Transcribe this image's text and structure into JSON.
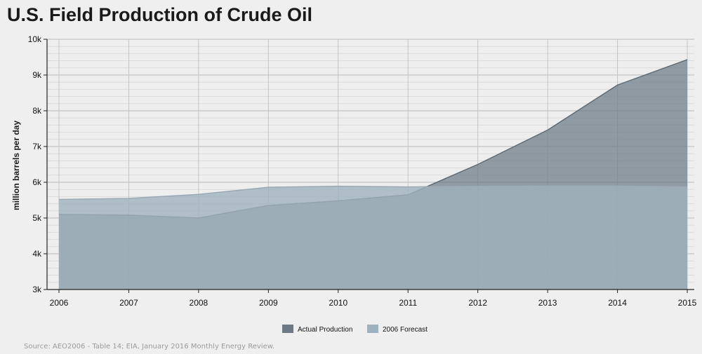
{
  "title": "U.S. Field Production of Crude Oil",
  "source": "Source: AEO2006 - Table 14; EIA, January 2016 Monthly Energy Review.",
  "colors": {
    "actual_fill": "#6b7a86",
    "actual_line": "#5f6b74",
    "forecast_fill": "#9fb1bd",
    "forecast_line": "#9aaab6",
    "background": "#efefef"
  },
  "chart_data": {
    "type": "area",
    "title": "U.S. Field Production of Crude Oil",
    "xlabel": "",
    "ylabel": "million barrels per day",
    "x": [
      "2006",
      "2007",
      "2008",
      "2009",
      "2010",
      "2011",
      "2012",
      "2013",
      "2014",
      "2015"
    ],
    "ylim": [
      3000,
      10000
    ],
    "yticks": [
      {
        "value": 3000,
        "label": "3k"
      },
      {
        "value": 4000,
        "label": "4k"
      },
      {
        "value": 5000,
        "label": "5k"
      },
      {
        "value": 6000,
        "label": "6k"
      },
      {
        "value": 7000,
        "label": "7k"
      },
      {
        "value": 8000,
        "label": "8k"
      },
      {
        "value": 9000,
        "label": "9k"
      },
      {
        "value": 10000,
        "label": "10k"
      }
    ],
    "series": [
      {
        "name": "Actual Production",
        "values": [
          5100,
          5080,
          5000,
          5350,
          5480,
          5650,
          6500,
          7460,
          8720,
          9430
        ]
      },
      {
        "name": "2006 Forecast",
        "values": [
          5520,
          5550,
          5660,
          5860,
          5890,
          5870,
          5890,
          5900,
          5900,
          5870
        ]
      }
    ],
    "grid": true,
    "legend_position": "bottom-center"
  }
}
